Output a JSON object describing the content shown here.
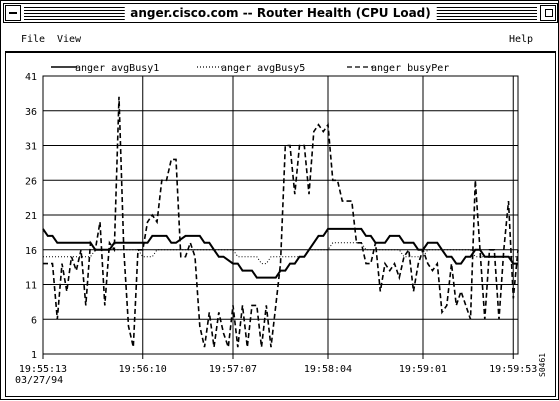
{
  "window": {
    "title": "anger.cisco.com -- Router Health (CPU Load)"
  },
  "menu": {
    "file_label": "File",
    "view_label": "View",
    "help_label": "Help"
  },
  "footer": {
    "date": "03/27/94",
    "figure_id": "S0461"
  },
  "icons": {
    "window_menu": "window-menu-icon",
    "maximize": "maximize-icon"
  },
  "chart_data": {
    "type": "line",
    "ylim": [
      1,
      41
    ],
    "yticks": [
      1,
      6,
      11,
      16,
      21,
      26,
      31,
      36,
      41
    ],
    "xlim": [
      0,
      100
    ],
    "xticks": [
      {
        "x": 0,
        "label": "19:55:13"
      },
      {
        "x": 21,
        "label": "19:56:10"
      },
      {
        "x": 40,
        "label": "19:57:07"
      },
      {
        "x": 60,
        "label": "19:58:04"
      },
      {
        "x": 80,
        "label": "19:59:01"
      },
      {
        "x": 99,
        "label": "19:59:53"
      }
    ],
    "grid": true,
    "legend_position": "top",
    "series": [
      {
        "name": "anger avgBusy1",
        "style": "solid",
        "points": [
          [
            0,
            19
          ],
          [
            1,
            18
          ],
          [
            2,
            18
          ],
          [
            3,
            17
          ],
          [
            4,
            17
          ],
          [
            7,
            17
          ],
          [
            10,
            17
          ],
          [
            11,
            16
          ],
          [
            14,
            16
          ],
          [
            15,
            17
          ],
          [
            16,
            17
          ],
          [
            18,
            17
          ],
          [
            21,
            17
          ],
          [
            22,
            17
          ],
          [
            23,
            18
          ],
          [
            24,
            18
          ],
          [
            26,
            18
          ],
          [
            27,
            17
          ],
          [
            28,
            17
          ],
          [
            30,
            18
          ],
          [
            33,
            18
          ],
          [
            34,
            17
          ],
          [
            35,
            17
          ],
          [
            36,
            16
          ],
          [
            37,
            15
          ],
          [
            38,
            15
          ],
          [
            40,
            14
          ],
          [
            41,
            14
          ],
          [
            42,
            13
          ],
          [
            43,
            13
          ],
          [
            44,
            13
          ],
          [
            45,
            12
          ],
          [
            48,
            12
          ],
          [
            49,
            12
          ],
          [
            50,
            13
          ],
          [
            51,
            13
          ],
          [
            52,
            14
          ],
          [
            53,
            14
          ],
          [
            54,
            15
          ],
          [
            55,
            15
          ],
          [
            56,
            16
          ],
          [
            57,
            17
          ],
          [
            58,
            18
          ],
          [
            59,
            18
          ],
          [
            60,
            19
          ],
          [
            62,
            19
          ],
          [
            65,
            19
          ],
          [
            67,
            19
          ],
          [
            68,
            18
          ],
          [
            69,
            18
          ],
          [
            70,
            17
          ],
          [
            72,
            17
          ],
          [
            73,
            18
          ],
          [
            75,
            18
          ],
          [
            76,
            17
          ],
          [
            78,
            17
          ],
          [
            79,
            16
          ],
          [
            80,
            16
          ],
          [
            81,
            17
          ],
          [
            83,
            17
          ],
          [
            84,
            16
          ],
          [
            85,
            15
          ],
          [
            86,
            15
          ],
          [
            87,
            14
          ],
          [
            88,
            14
          ],
          [
            89,
            15
          ],
          [
            90,
            15
          ],
          [
            91,
            16
          ],
          [
            92,
            16
          ],
          [
            93,
            15
          ],
          [
            95,
            15
          ],
          [
            96,
            15
          ],
          [
            97,
            15
          ],
          [
            98,
            15
          ],
          [
            99,
            14
          ],
          [
            100,
            14
          ]
        ]
      },
      {
        "name": "anger avgBusy5",
        "style": "dotted",
        "points": [
          [
            0,
            15
          ],
          [
            10,
            15
          ],
          [
            11,
            16
          ],
          [
            20,
            16
          ],
          [
            21,
            15
          ],
          [
            23,
            15
          ],
          [
            24,
            16
          ],
          [
            40,
            16
          ],
          [
            41,
            15
          ],
          [
            45,
            15
          ],
          [
            46,
            14
          ],
          [
            47,
            14
          ],
          [
            48,
            15
          ],
          [
            55,
            15
          ],
          [
            56,
            16
          ],
          [
            60,
            16
          ],
          [
            61,
            17
          ],
          [
            67,
            17
          ],
          [
            68,
            16
          ],
          [
            75,
            16
          ],
          [
            76,
            15
          ],
          [
            80,
            15
          ],
          [
            81,
            16
          ],
          [
            90,
            16
          ],
          [
            91,
            15
          ],
          [
            100,
            15
          ]
        ]
      },
      {
        "name": "anger busyPer",
        "style": "dashed",
        "points": [
          [
            0,
            14
          ],
          [
            2,
            14
          ],
          [
            3,
            6
          ],
          [
            4,
            14
          ],
          [
            5,
            10
          ],
          [
            6,
            15
          ],
          [
            7,
            13
          ],
          [
            8,
            16
          ],
          [
            9,
            8
          ],
          [
            10,
            17
          ],
          [
            11,
            16
          ],
          [
            12,
            20
          ],
          [
            13,
            8
          ],
          [
            14,
            17
          ],
          [
            15,
            16
          ],
          [
            16,
            38
          ],
          [
            17,
            16
          ],
          [
            18,
            5
          ],
          [
            19,
            2
          ],
          [
            20,
            16
          ],
          [
            21,
            16
          ],
          [
            22,
            20
          ],
          [
            23,
            21
          ],
          [
            24,
            20
          ],
          [
            25,
            26
          ],
          [
            26,
            26
          ],
          [
            27,
            29
          ],
          [
            28,
            29
          ],
          [
            29,
            15
          ],
          [
            30,
            15
          ],
          [
            31,
            17
          ],
          [
            32,
            15
          ],
          [
            33,
            5
          ],
          [
            34,
            2
          ],
          [
            35,
            7
          ],
          [
            36,
            2
          ],
          [
            37,
            7
          ],
          [
            38,
            4
          ],
          [
            39,
            2
          ],
          [
            40,
            8
          ],
          [
            41,
            2
          ],
          [
            42,
            8
          ],
          [
            43,
            2
          ],
          [
            44,
            8
          ],
          [
            45,
            8
          ],
          [
            46,
            2
          ],
          [
            47,
            8
          ],
          [
            48,
            2
          ],
          [
            49,
            8
          ],
          [
            50,
            14
          ],
          [
            51,
            31
          ],
          [
            52,
            31
          ],
          [
            53,
            24
          ],
          [
            54,
            31
          ],
          [
            55,
            31
          ],
          [
            56,
            24
          ],
          [
            57,
            33
          ],
          [
            58,
            34
          ],
          [
            59,
            33
          ],
          [
            60,
            34
          ],
          [
            61,
            26
          ],
          [
            62,
            26
          ],
          [
            63,
            23
          ],
          [
            64,
            23
          ],
          [
            65,
            23
          ],
          [
            66,
            17
          ],
          [
            67,
            17
          ],
          [
            68,
            14
          ],
          [
            69,
            14
          ],
          [
            70,
            17
          ],
          [
            71,
            10
          ],
          [
            72,
            14
          ],
          [
            73,
            13
          ],
          [
            74,
            14
          ],
          [
            75,
            12
          ],
          [
            76,
            15
          ],
          [
            77,
            16
          ],
          [
            78,
            10
          ],
          [
            79,
            14
          ],
          [
            80,
            16
          ],
          [
            81,
            14
          ],
          [
            82,
            13
          ],
          [
            83,
            14
          ],
          [
            84,
            7
          ],
          [
            85,
            8
          ],
          [
            86,
            14
          ],
          [
            87,
            8
          ],
          [
            88,
            10
          ],
          [
            89,
            8
          ],
          [
            90,
            6
          ],
          [
            91,
            26
          ],
          [
            92,
            16
          ],
          [
            93,
            6
          ],
          [
            94,
            16
          ],
          [
            95,
            16
          ],
          [
            96,
            6
          ],
          [
            97,
            16
          ],
          [
            98,
            23
          ],
          [
            99,
            9
          ],
          [
            100,
            16
          ]
        ]
      }
    ]
  }
}
